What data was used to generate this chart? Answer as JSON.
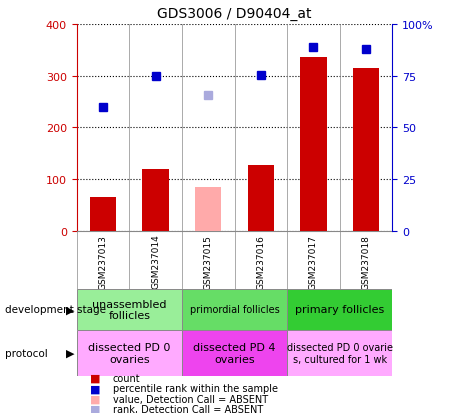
{
  "title": "GDS3006 / D90404_at",
  "samples": [
    "GSM237013",
    "GSM237014",
    "GSM237015",
    "GSM237016",
    "GSM237017",
    "GSM237018"
  ],
  "bar_values": [
    65,
    120,
    85,
    128,
    335,
    315
  ],
  "bar_absent": [
    false,
    false,
    true,
    false,
    false,
    false
  ],
  "rank_values": [
    60,
    75,
    65.5,
    75.5,
    89,
    88
  ],
  "rank_absent": [
    false,
    false,
    true,
    false,
    false,
    false
  ],
  "left_ylim": [
    0,
    400
  ],
  "right_ylim": [
    0,
    100
  ],
  "left_yticks": [
    0,
    100,
    200,
    300,
    400
  ],
  "right_yticks": [
    0,
    25,
    50,
    75,
    100
  ],
  "right_yticklabels": [
    "0",
    "25",
    "50",
    "75",
    "100%"
  ],
  "bar_color_normal": "#cc0000",
  "bar_color_absent": "#ffaaaa",
  "rank_color_normal": "#0000cc",
  "rank_color_absent": "#aaaadd",
  "dev_stage_groups": [
    {
      "label": "unassembled\nfollicles",
      "start": 0,
      "end": 2,
      "color": "#99ee99",
      "fontsize": 8
    },
    {
      "label": "primordial follicles",
      "start": 2,
      "end": 4,
      "color": "#66dd66",
      "fontsize": 7
    },
    {
      "label": "primary follicles",
      "start": 4,
      "end": 6,
      "color": "#33cc33",
      "fontsize": 8
    }
  ],
  "protocol_groups": [
    {
      "label": "dissected PD 0\novaries",
      "start": 0,
      "end": 2,
      "color": "#ffaaff",
      "fontsize": 8
    },
    {
      "label": "dissected PD 4\novaries",
      "start": 2,
      "end": 4,
      "color": "#ee44ee",
      "fontsize": 8
    },
    {
      "label": "dissected PD 0 ovarie\ns, cultured for 1 wk",
      "start": 4,
      "end": 6,
      "color": "#ffaaff",
      "fontsize": 7
    }
  ],
  "legend_items": [
    {
      "label": "count",
      "color": "#cc0000"
    },
    {
      "label": "percentile rank within the sample",
      "color": "#0000cc"
    },
    {
      "label": "value, Detection Call = ABSENT",
      "color": "#ffaaaa"
    },
    {
      "label": "rank, Detection Call = ABSENT",
      "color": "#aaaadd"
    }
  ],
  "left_label_color": "#cc0000",
  "right_label_color": "#0000cc",
  "annotation_dev": "development stage",
  "annotation_prot": "protocol",
  "plot_bg": "#ffffff",
  "sample_bg": "#cccccc",
  "grid_color": "#000000",
  "sep_color": "#888888"
}
